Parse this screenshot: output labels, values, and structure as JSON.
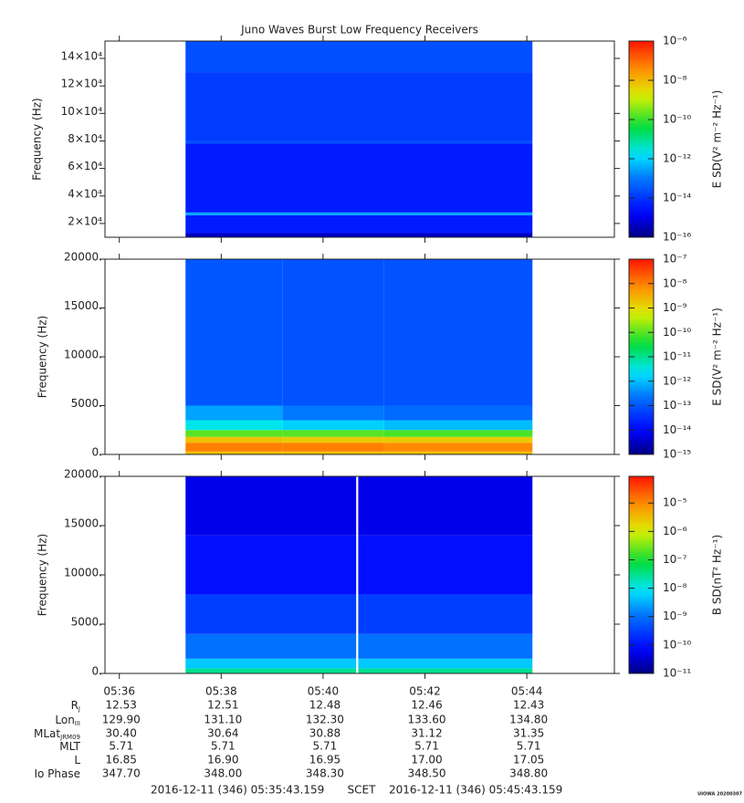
{
  "chart_data": [
    {
      "type": "spectrogram",
      "title": "Juno Waves Burst Low Frequency Receivers",
      "ylabel": "Frequency (Hz)",
      "clabel": "E SD(V² m⁻² Hz⁻¹)",
      "ylim": [
        10000,
        152600
      ],
      "yticks": [
        {
          "value": 20000,
          "label": "2×10⁴"
        },
        {
          "value": 40000,
          "label": "4×10⁴"
        },
        {
          "value": 60000,
          "label": "6×10⁴"
        },
        {
          "value": 80000,
          "label": "8×10⁴"
        },
        {
          "value": 100000,
          "label": "10×10⁴"
        },
        {
          "value": 120000,
          "label": "12×10⁴"
        },
        {
          "value": 140000,
          "label": "14×10⁴"
        }
      ],
      "clim": [
        1e-16,
        1e-06
      ],
      "log_color": true,
      "cticks": [
        {
          "value": 1e-16,
          "label": "10⁻¹⁶"
        },
        {
          "value": 1e-14,
          "label": "10⁻¹⁴"
        },
        {
          "value": 1e-12,
          "label": "10⁻¹²"
        },
        {
          "value": 1e-10,
          "label": "10⁻¹⁰"
        },
        {
          "value": 1e-08,
          "label": "10⁻⁸"
        },
        {
          "value": 1e-06,
          "label": "10⁻⁶"
        }
      ],
      "time_edges": [
        37.3,
        44.11
      ],
      "freq_edges": [
        10000,
        13000,
        26000,
        28000,
        78000,
        80000,
        130000,
        152600
      ],
      "z": [
        [
          4e-16
        ],
        [
          4e-15
        ],
        [
          3e-13
        ],
        [
          4e-15
        ],
        [
          2.5e-14
        ],
        [
          1.2e-14
        ],
        [
          2.5e-14
        ]
      ]
    },
    {
      "type": "spectrogram",
      "ylabel": "Frequency (Hz)",
      "clabel": "E SD(V² m⁻² Hz⁻¹)",
      "ylim": [
        0,
        20000
      ],
      "yticks": [
        {
          "value": 0,
          "label": "0."
        },
        {
          "value": 5000,
          "label": "5000."
        },
        {
          "value": 10000,
          "label": "10000."
        },
        {
          "value": 15000,
          "label": "15000."
        },
        {
          "value": 20000,
          "label": "20000."
        }
      ],
      "clim": [
        1e-15,
        1e-07
      ],
      "log_color": true,
      "cticks": [
        {
          "value": 1e-15,
          "label": "10⁻¹⁵"
        },
        {
          "value": 1e-14,
          "label": "10⁻¹⁴"
        },
        {
          "value": 1e-13,
          "label": "10⁻¹³"
        },
        {
          "value": 1e-12,
          "label": "10⁻¹²"
        },
        {
          "value": 1e-11,
          "label": "10⁻¹¹"
        },
        {
          "value": 1e-10,
          "label": "10⁻¹⁰"
        },
        {
          "value": 1e-09,
          "label": "10⁻⁹"
        },
        {
          "value": 1e-08,
          "label": "10⁻⁸"
        },
        {
          "value": 1e-07,
          "label": "10⁻⁷"
        }
      ],
      "time_edges": [
        37.3,
        39.2,
        41.2,
        44.11
      ],
      "freq_edges": [
        0,
        300,
        1200,
        1800,
        2500,
        3500,
        5000,
        20000
      ],
      "z": [
        [
          2e-09,
          2e-09,
          2e-09
        ],
        [
          1e-08,
          1e-08,
          8e-09
        ],
        [
          2e-09,
          1.5e-09,
          1.5e-09
        ],
        [
          1e-10,
          1e-10,
          8e-11
        ],
        [
          3e-12,
          1.5e-12,
          1e-12
        ],
        [
          6e-13,
          2.5e-13,
          1.8e-13
        ],
        [
          1e-13,
          9e-14,
          9e-14
        ]
      ]
    },
    {
      "type": "spectrogram",
      "ylabel": "Frequency (Hz)",
      "clabel": "B SD(nT² Hz⁻¹)",
      "ylim": [
        0,
        20000
      ],
      "yticks": [
        {
          "value": 0,
          "label": "0."
        },
        {
          "value": 5000,
          "label": "5000."
        },
        {
          "value": 10000,
          "label": "10000."
        },
        {
          "value": 15000,
          "label": "15000."
        },
        {
          "value": 20000,
          "label": "20000."
        }
      ],
      "clim": [
        1e-11,
        8.7e-05
      ],
      "log_color": true,
      "cticks": [
        {
          "value": 1e-11,
          "label": "10⁻¹¹"
        },
        {
          "value": 1e-10,
          "label": "10⁻¹⁰"
        },
        {
          "value": 1e-09,
          "label": "10⁻⁹"
        },
        {
          "value": 1e-08,
          "label": "10⁻⁸"
        },
        {
          "value": 1e-07,
          "label": "10⁻⁷"
        },
        {
          "value": 1e-06,
          "label": "10⁻⁶"
        },
        {
          "value": 1e-05,
          "label": "10⁻⁵"
        }
      ],
      "xlim": [
        35.7183,
        45.7183
      ],
      "xticks": [
        {
          "value": 36,
          "label": "05:36"
        },
        {
          "value": 38,
          "label": "05:38"
        },
        {
          "value": 40,
          "label": "05:40"
        },
        {
          "value": 42,
          "label": "05:42"
        },
        {
          "value": 44,
          "label": "05:44"
        }
      ],
      "time_edges": [
        37.3,
        40.65,
        40.69,
        44.11
      ],
      "freq_edges": [
        0,
        500,
        1500,
        4000,
        8000,
        14000,
        20000
      ],
      "z": [
        [
          3e-08,
          null,
          3e-08
        ],
        [
          5e-09,
          null,
          5e-09
        ],
        [
          1e-09,
          null,
          1e-09
        ],
        [
          3e-10,
          null,
          3e-10
        ],
        [
          1e-10,
          null,
          1e-10
        ],
        [
          5e-11,
          null,
          5e-11
        ]
      ]
    }
  ],
  "ephemeris": {
    "rows": [
      {
        "label": "R",
        "sub": "J",
        "values": [
          "12.53",
          "12.51",
          "12.48",
          "12.46",
          "12.43"
        ]
      },
      {
        "label": "Lon",
        "sub": "III",
        "values": [
          "129.90",
          "131.10",
          "132.30",
          "133.60",
          "134.80"
        ]
      },
      {
        "label": "MLat",
        "sub": "JRM09",
        "values": [
          "30.40",
          "30.64",
          "30.88",
          "31.12",
          "31.35"
        ]
      },
      {
        "label": "MLT",
        "values": [
          "5.71",
          "5.71",
          "5.71",
          "5.71",
          "5.71"
        ]
      },
      {
        "label": "L",
        "values": [
          "16.85",
          "16.90",
          "16.95",
          "17.00",
          "17.05"
        ]
      },
      {
        "label": "Io Phase",
        "values": [
          "347.70",
          "348.00",
          "348.30",
          "348.50",
          "348.80"
        ]
      }
    ]
  },
  "footer": {
    "start": "2016-12-11 (346) 05:35:43.159",
    "frame": "SCET",
    "end": "2016-12-11 (346) 05:45:43.159",
    "credit": "UIOWA 20200307"
  }
}
